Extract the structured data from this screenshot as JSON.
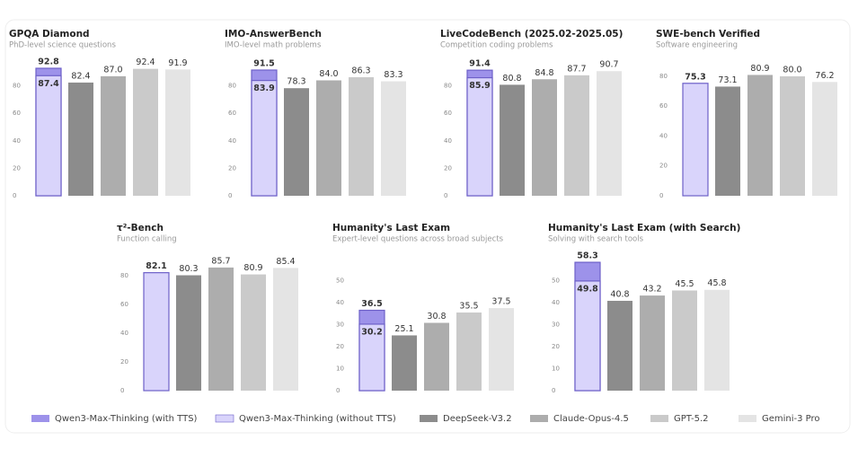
{
  "legend": [
    {
      "name": "Qwen3-Max-Thinking (with TTS)",
      "color": "#9d92ea",
      "edge": "#6d60c8"
    },
    {
      "name": "Qwen3-Max-Thinking (without TTS)",
      "color": "#d9d4fb",
      "edge": "#6d60c8"
    },
    {
      "name": "DeepSeek-V3.2",
      "color": "#8c8c8c"
    },
    {
      "name": "Claude-Opus-4.5",
      "color": "#adadad"
    },
    {
      "name": "GPT-5.2",
      "color": "#cacaca"
    },
    {
      "name": "Gemini-3 Pro",
      "color": "#e4e4e4"
    }
  ],
  "chart_data": [
    {
      "type": "bar",
      "title": "GPQA Diamond",
      "subtitle": "PhD-level science questions",
      "values": [
        92.8,
        87.4,
        82.4,
        87.0,
        92.4,
        91.9
      ],
      "value_labels": [
        "92.8",
        "87.4",
        "82.4",
        "87.0",
        "92.4",
        "91.9"
      ],
      "ylim": [
        0,
        100
      ],
      "yticks": [
        0,
        20,
        40,
        60,
        80
      ]
    },
    {
      "type": "bar",
      "title": "IMO-AnswerBench",
      "subtitle": "IMO-level math problems",
      "values": [
        91.5,
        83.9,
        78.3,
        84.0,
        86.3,
        83.3
      ],
      "value_labels": [
        "91.5",
        "83.9",
        "78.3",
        "84.0",
        "86.3",
        "83.3"
      ],
      "ylim": [
        0,
        100
      ],
      "yticks": [
        0,
        20,
        40,
        60,
        80
      ]
    },
    {
      "type": "bar",
      "title": "LiveCodeBench (2025.02-2025.05)",
      "subtitle": "Competition coding problems",
      "values": [
        91.4,
        85.9,
        80.8,
        84.8,
        87.7,
        90.7
      ],
      "value_labels": [
        "91.4",
        "85.9",
        "80.8",
        "84.8",
        "87.7",
        "90.7"
      ],
      "ylim": [
        0,
        100
      ],
      "yticks": [
        0,
        20,
        40,
        60,
        80
      ]
    },
    {
      "type": "bar",
      "title": "SWE-bench Verified",
      "subtitle": "Software engineering",
      "values": [
        null,
        75.3,
        73.1,
        80.9,
        80.0,
        76.2
      ],
      "value_labels": [
        null,
        "75.3",
        "73.1",
        "80.9",
        "80.0",
        "76.2"
      ],
      "ylim": [
        0,
        92
      ],
      "yticks": [
        0,
        20,
        40,
        60,
        80
      ]
    },
    {
      "type": "bar",
      "title": "τ²-Bench",
      "subtitle": "Function calling",
      "values": [
        null,
        82.1,
        80.3,
        85.7,
        80.9,
        85.4
      ],
      "value_labels": [
        null,
        "82.1",
        "80.3",
        "85.7",
        "80.9",
        "85.4"
      ],
      "ylim": [
        0,
        95
      ],
      "yticks": [
        0,
        20,
        40,
        60,
        80
      ]
    },
    {
      "type": "bar",
      "title": "Humanity's Last Exam",
      "subtitle": "Expert-level questions across broad subjects",
      "values": [
        36.5,
        30.2,
        25.1,
        30.8,
        35.5,
        37.5
      ],
      "value_labels": [
        "36.5",
        "30.2",
        "25.1",
        "30.8",
        "35.5",
        "37.5"
      ],
      "ylim": [
        0,
        62
      ],
      "yticks": [
        0,
        10,
        20,
        30,
        40,
        50
      ]
    },
    {
      "type": "bar",
      "title": "Humanity's Last Exam (with Search)",
      "subtitle": "Solving with search tools",
      "values": [
        58.3,
        49.8,
        40.8,
        43.2,
        45.5,
        45.8
      ],
      "value_labels": [
        "58.3",
        "49.8",
        "40.8",
        "43.2",
        "45.5",
        "45.8"
      ],
      "ylim": [
        0,
        62
      ],
      "yticks": [
        0,
        10,
        20,
        30,
        40,
        50
      ]
    }
  ]
}
